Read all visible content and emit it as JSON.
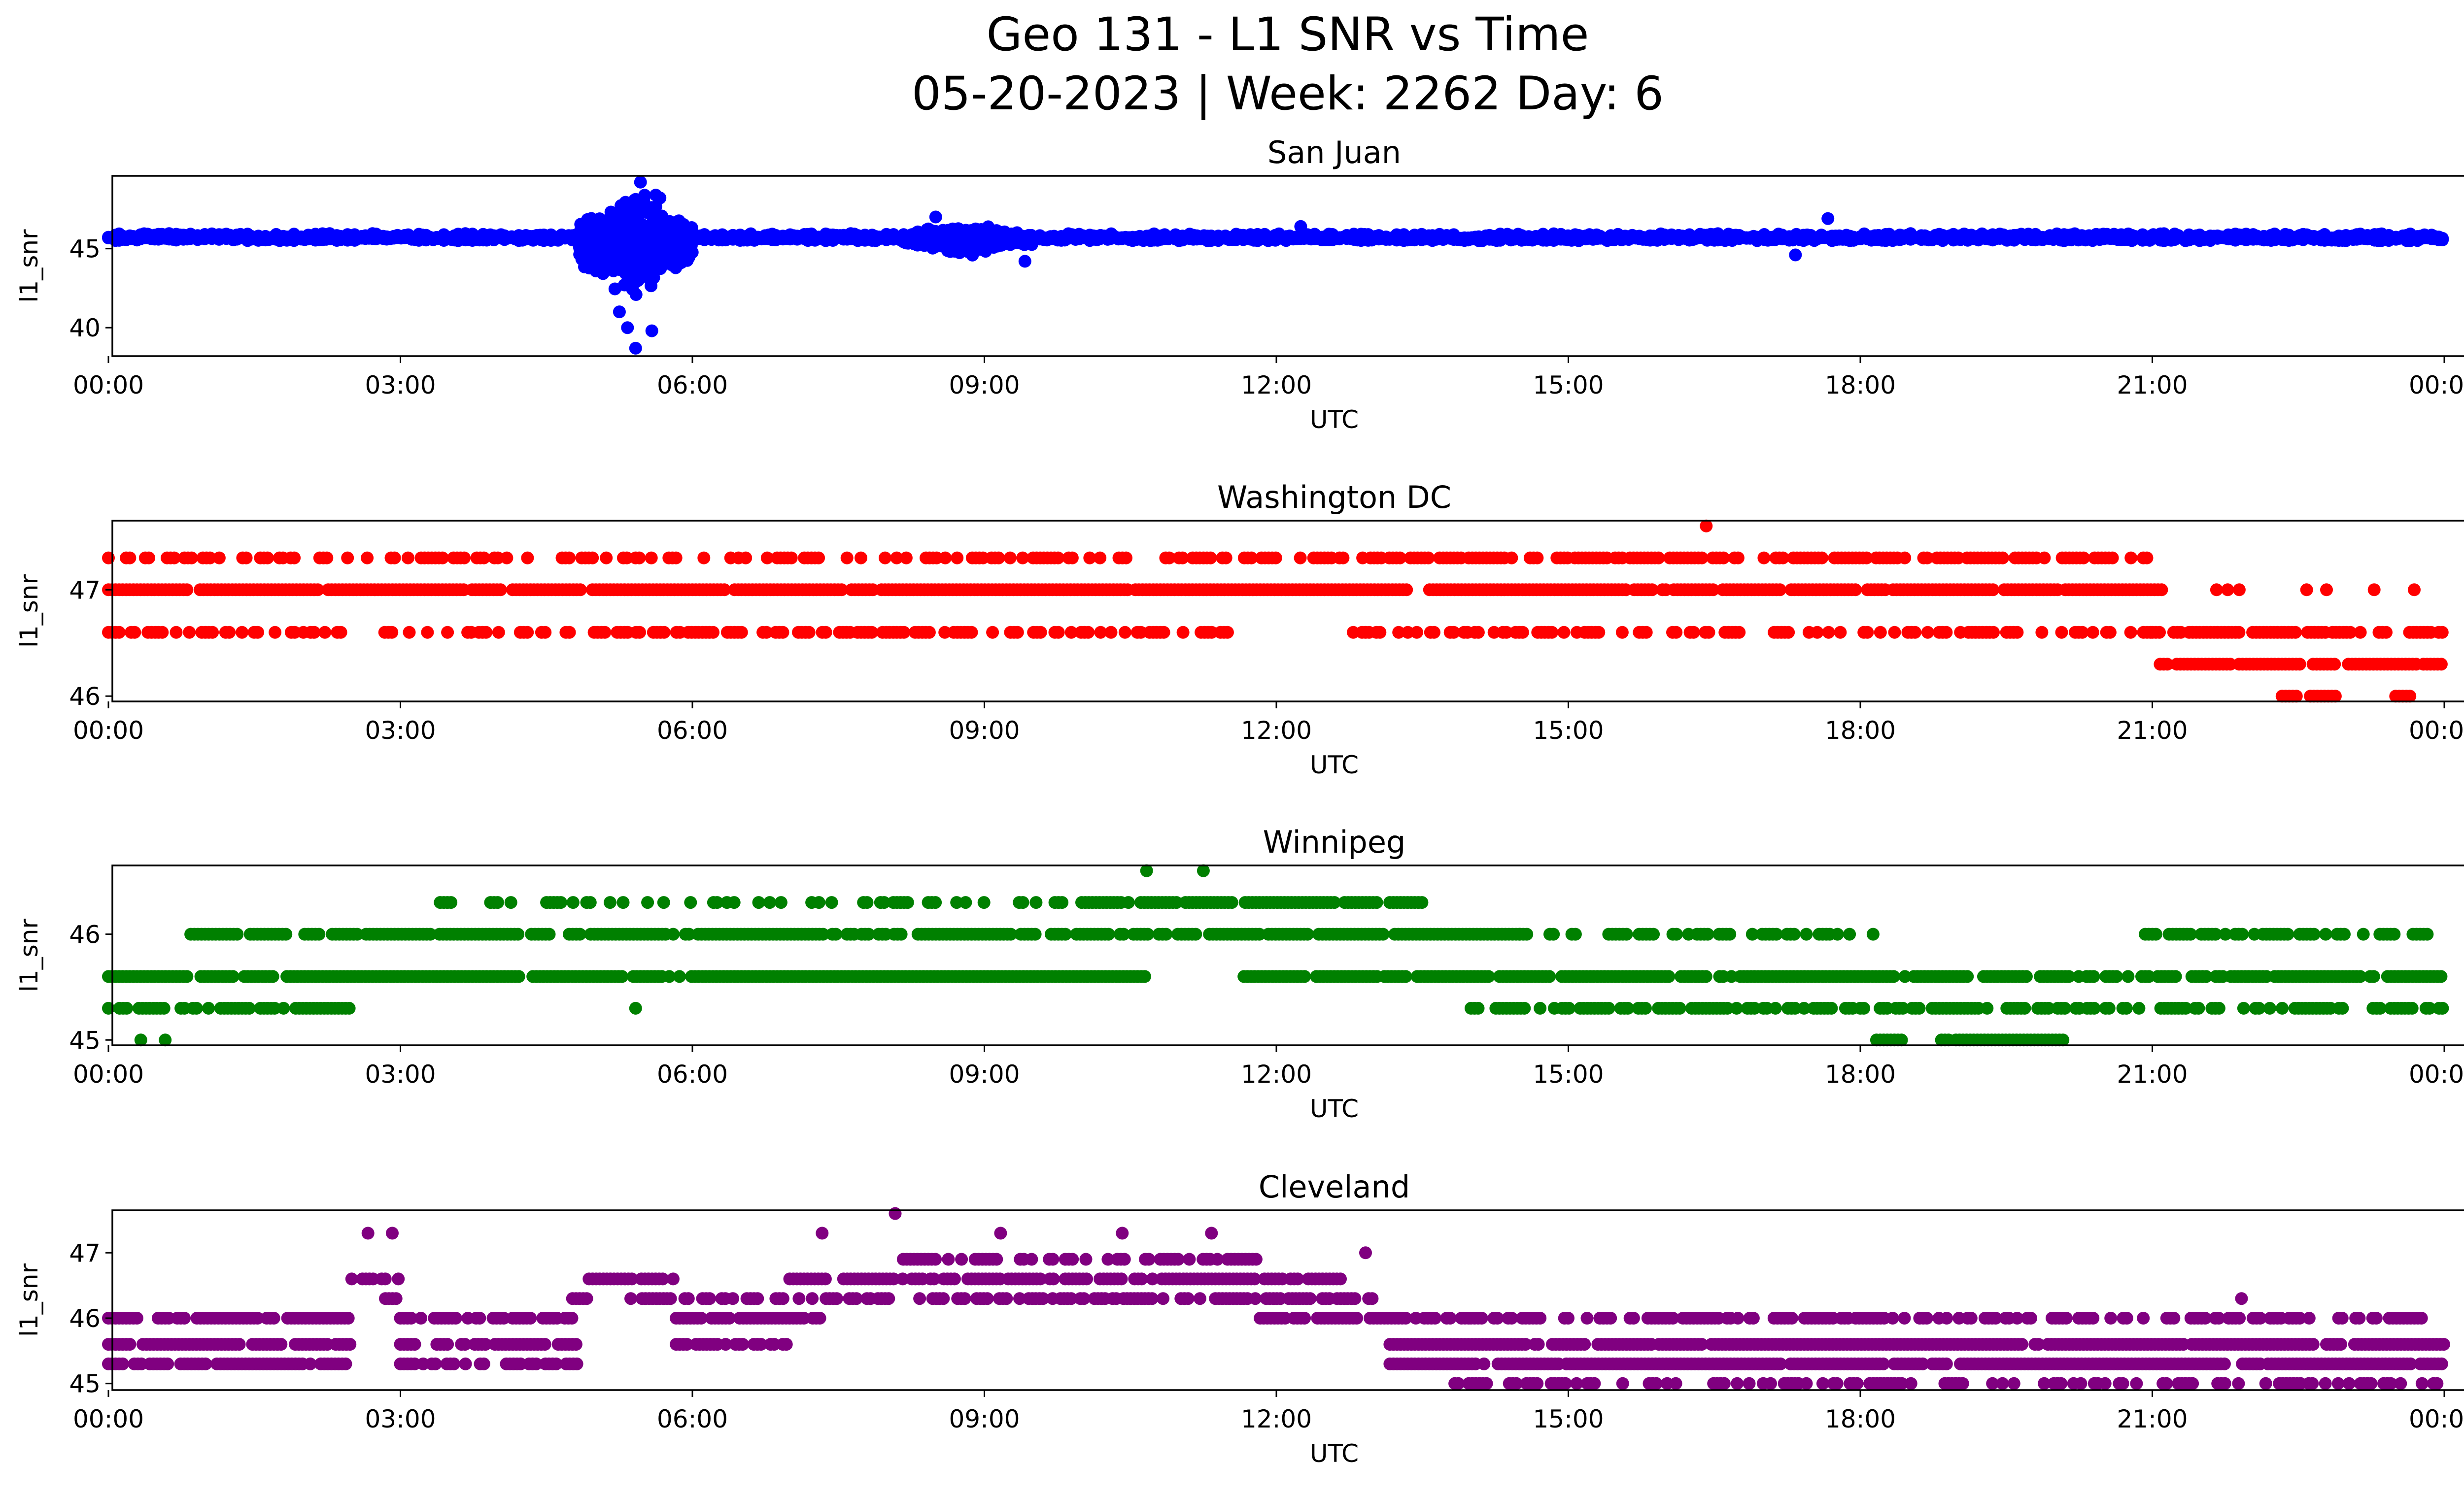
{
  "figure": {
    "title_line1": "Geo 131 - L1 SNR vs Time",
    "title_line2": "05-20-2023 | Week: 2262 Day: 6"
  },
  "chart_data": [
    {
      "type": "scatter",
      "title": "San Juan",
      "xlabel": "UTC",
      "ylabel": "l1_snr",
      "color": "#0000ff",
      "xlim": [
        "00:00",
        "00:00 (+1d)"
      ],
      "ylim": [
        38.2,
        49.6
      ],
      "x_ticks": [
        "00:00",
        "03:00",
        "06:00",
        "09:00",
        "12:00",
        "15:00",
        "18:00",
        "21:00",
        "00:00"
      ],
      "y_ticks": [
        40,
        45
      ],
      "series": [
        {
          "bands": [
            {
              "y": 45.8,
              "from": "00:00",
              "to": "24:00",
              "jitter": 0.3
            },
            {
              "y": 45.6,
              "from": "00:00",
              "to": "24:00",
              "jitter": 0.2
            }
          ],
          "bursts": [
            {
              "from": "04:50",
              "to": "06:00",
              "center": 45.3,
              "spread": 2.2
            },
            {
              "from": "08:10",
              "to": "09:30",
              "center": 45.6,
              "spread": 0.6
            }
          ],
          "points": [
            {
              "x": "05:25",
              "y": 38.7
            },
            {
              "x": "05:20",
              "y": 40.0
            },
            {
              "x": "05:35",
              "y": 39.8
            },
            {
              "x": "05:28",
              "y": 49.2
            },
            {
              "x": "05:15",
              "y": 41.0
            },
            {
              "x": "05:40",
              "y": 48.2
            },
            {
              "x": "08:30",
              "y": 47.0
            },
            {
              "x": "09:25",
              "y": 44.2
            },
            {
              "x": "17:40",
              "y": 46.9
            },
            {
              "x": "17:20",
              "y": 44.6
            },
            {
              "x": "12:15",
              "y": 46.4
            }
          ]
        }
      ]
    },
    {
      "type": "scatter",
      "title": "Washington DC",
      "xlabel": "UTC",
      "ylabel": "l1_snr",
      "color": "#ff0000",
      "xlim": [
        "00:00",
        "00:00 (+1d)"
      ],
      "ylim": [
        45.95,
        47.65
      ],
      "x_ticks": [
        "00:00",
        "03:00",
        "06:00",
        "09:00",
        "12:00",
        "15:00",
        "18:00",
        "21:00",
        "00:00"
      ],
      "y_ticks": [
        46,
        47
      ],
      "series": [
        {
          "bands": [
            {
              "y": 47.0,
              "from": "00:00",
              "to": "21:10",
              "density": 0.97
            },
            {
              "y": 47.0,
              "from": "21:10",
              "to": "24:00",
              "density": 0.12
            },
            {
              "y": 47.3,
              "from": "00:00",
              "to": "11:00",
              "density": 0.55
            },
            {
              "y": 47.3,
              "from": "11:00",
              "to": "21:00",
              "density": 0.78
            },
            {
              "y": 46.6,
              "from": "00:00",
              "to": "11:30",
              "density": 0.6
            },
            {
              "y": 46.6,
              "from": "12:45",
              "to": "21:00",
              "density": 0.55
            },
            {
              "y": 46.6,
              "from": "21:00",
              "to": "24:00",
              "density": 0.8
            },
            {
              "y": 46.3,
              "from": "21:00",
              "to": "24:00",
              "density": 0.95
            },
            {
              "y": 46.0,
              "from": "22:20",
              "to": "22:55",
              "density": 0.9
            },
            {
              "y": 46.0,
              "from": "23:30",
              "to": "23:40",
              "density": 0.9
            }
          ],
          "points": [
            {
              "x": "16:25",
              "y": 47.6
            }
          ]
        }
      ]
    },
    {
      "type": "scatter",
      "title": "Winnipeg",
      "xlabel": "UTC",
      "ylabel": "l1_snr",
      "color": "#008000",
      "xlim": [
        "00:00",
        "00:00 (+1d)"
      ],
      "ylim": [
        44.95,
        46.65
      ],
      "x_ticks": [
        "00:00",
        "03:00",
        "06:00",
        "09:00",
        "12:00",
        "15:00",
        "18:00",
        "21:00",
        "00:00"
      ],
      "y_ticks": [
        45,
        46
      ],
      "series": [
        {
          "bands": [
            {
              "y": 45.6,
              "from": "00:00",
              "to": "10:40",
              "density": 0.95
            },
            {
              "y": 45.6,
              "from": "11:40",
              "to": "24:00",
              "density": 0.9
            },
            {
              "y": 46.0,
              "from": "00:45",
              "to": "14:30",
              "density": 0.9
            },
            {
              "y": 46.0,
              "from": "14:30",
              "to": "18:10",
              "density": 0.55
            },
            {
              "y": 46.0,
              "from": "20:50",
              "to": "23:50",
              "density": 0.75
            },
            {
              "y": 46.3,
              "from": "03:10",
              "to": "10:00",
              "density": 0.45
            },
            {
              "y": 46.3,
              "from": "10:00",
              "to": "13:30",
              "density": 0.9
            },
            {
              "y": 45.3,
              "from": "00:00",
              "to": "02:30",
              "density": 0.85
            },
            {
              "y": 45.3,
              "from": "14:00",
              "to": "24:00",
              "density": 0.75
            },
            {
              "y": 45.0,
              "from": "18:10",
              "to": "18:30",
              "density": 0.9
            },
            {
              "y": 45.0,
              "from": "18:50",
              "to": "20:05",
              "density": 0.9
            }
          ],
          "points": [
            {
              "x": "00:20",
              "y": 45.0
            },
            {
              "x": "00:35",
              "y": 45.0
            },
            {
              "x": "10:40",
              "y": 46.6
            },
            {
              "x": "11:15",
              "y": 46.6
            },
            {
              "x": "05:25",
              "y": 45.3
            }
          ]
        }
      ]
    },
    {
      "type": "scatter",
      "title": "Cleveland",
      "xlabel": "UTC",
      "ylabel": "l1_snr",
      "color": "#800080",
      "xlim": [
        "00:00",
        "00:00 (+1d)"
      ],
      "ylim": [
        44.9,
        47.65
      ],
      "x_ticks": [
        "00:00",
        "03:00",
        "06:00",
        "09:00",
        "12:00",
        "15:00",
        "18:00",
        "21:00",
        "00:00"
      ],
      "y_ticks": [
        45,
        46,
        47
      ],
      "series": [
        {
          "bands": [
            {
              "y": 46.0,
              "from": "00:00",
              "to": "02:30",
              "density": 0.9
            },
            {
              "y": 45.6,
              "from": "00:00",
              "to": "02:30",
              "density": 0.95
            },
            {
              "y": 45.3,
              "from": "00:00",
              "to": "02:30",
              "density": 0.9
            },
            {
              "y": 46.6,
              "from": "02:30",
              "to": "03:00",
              "density": 0.7
            },
            {
              "y": 46.3,
              "from": "02:30",
              "to": "03:00",
              "density": 0.7
            },
            {
              "y": 46.0,
              "from": "03:00",
              "to": "04:50",
              "density": 0.8
            },
            {
              "y": 45.6,
              "from": "03:00",
              "to": "04:50",
              "density": 0.9
            },
            {
              "y": 45.3,
              "from": "03:00",
              "to": "04:50",
              "density": 0.7
            },
            {
              "y": 46.6,
              "from": "04:50",
              "to": "05:50",
              "density": 0.9
            },
            {
              "y": 46.3,
              "from": "04:40",
              "to": "13:00",
              "density": 0.7
            },
            {
              "y": 46.0,
              "from": "05:50",
              "to": "07:20",
              "density": 0.8
            },
            {
              "y": 45.6,
              "from": "05:50",
              "to": "07:00",
              "density": 0.7
            },
            {
              "y": 46.6,
              "from": "07:00",
              "to": "12:40",
              "density": 0.85
            },
            {
              "y": 46.9,
              "from": "08:10",
              "to": "09:30",
              "density": 0.8
            },
            {
              "y": 46.9,
              "from": "09:40",
              "to": "11:50",
              "density": 0.7
            },
            {
              "y": 46.0,
              "from": "11:50",
              "to": "14:00",
              "density": 0.8
            },
            {
              "y": 46.0,
              "from": "14:00",
              "to": "24:00",
              "density": 0.7
            },
            {
              "y": 45.6,
              "from": "13:10",
              "to": "24:00",
              "density": 0.97
            },
            {
              "y": 45.3,
              "from": "13:10",
              "to": "24:00",
              "density": 0.97
            },
            {
              "y": 45.0,
              "from": "13:50",
              "to": "24:00",
              "density": 0.6
            }
          ],
          "points": [
            {
              "x": "08:05",
              "y": 47.6
            },
            {
              "x": "02:40",
              "y": 47.3
            },
            {
              "x": "02:55",
              "y": 47.3
            },
            {
              "x": "07:20",
              "y": 47.3
            },
            {
              "x": "09:10",
              "y": 47.3
            },
            {
              "x": "10:25",
              "y": 47.3
            },
            {
              "x": "11:20",
              "y": 47.3
            },
            {
              "x": "12:55",
              "y": 47.0
            },
            {
              "x": "21:55",
              "y": 46.3
            }
          ]
        }
      ]
    }
  ]
}
